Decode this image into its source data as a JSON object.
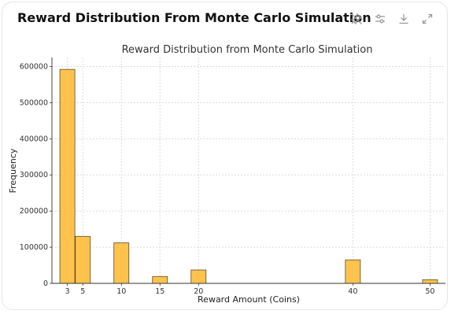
{
  "card": {
    "title": "Reward Distribution From Monte Carlo Simulation"
  },
  "toolbar": {
    "icons": [
      "pin-off-icon",
      "sliders-icon",
      "download-icon",
      "expand-icon"
    ]
  },
  "chart_data": {
    "type": "bar",
    "title": "Reward Distribution from Monte Carlo Simulation",
    "xlabel": "Reward Amount (Coins)",
    "ylabel": "Frequency",
    "x": [
      3,
      5,
      10,
      15,
      20,
      40,
      50
    ],
    "values": [
      592000,
      130000,
      112000,
      19000,
      37000,
      65000,
      10000
    ],
    "xticks": [
      3,
      5,
      10,
      15,
      20,
      40,
      50
    ],
    "yticks": [
      0,
      100000,
      200000,
      300000,
      400000,
      500000,
      600000
    ],
    "ylim": [
      0,
      625000
    ],
    "xlim": [
      1,
      52
    ],
    "bar_color": "#FFC34D",
    "bar_edge_color": "#5a4a2a",
    "grid": true
  }
}
